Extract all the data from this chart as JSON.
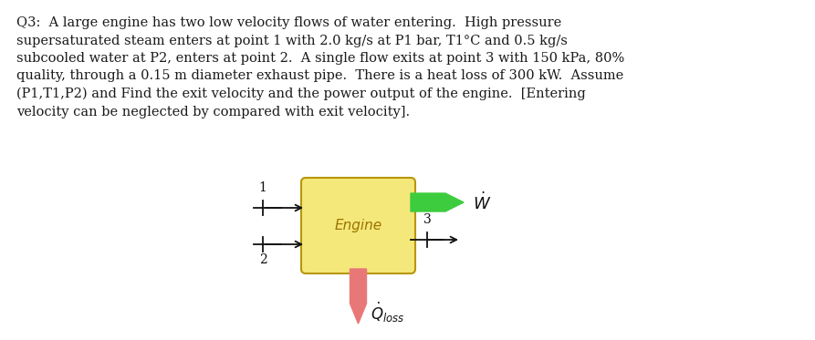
{
  "background_color": "#ffffff",
  "text_lines": [
    "Q3:  A large engine has two low velocity flows of water entering.  High pressure",
    "supersaturated steam enters at point 1 with 2.0 kg/s at P1 bar, T1°C and 0.5 kg/s",
    "subcooled water at P2, enters at point 2.  A single flow exits at point 3 with 150 kPa, 80%",
    "quality, through a 0.15 m diameter exhaust pipe.  There is a heat loss of 300 kW.  Assume",
    "(P1,T1,P2) and Find the exit velocity and the power output of the engine.  [Entering",
    "velocity can be neglected by compared with exit velocity]."
  ],
  "text_fontsize": 10.5,
  "text_color": "#1a1a1a",
  "engine_box_facecolor": "#f5e87a",
  "engine_box_edgecolor": "#b8960a",
  "engine_label": "Engine",
  "engine_label_color": "#9a7200",
  "engine_label_fontsize": 11,
  "green_arrow_color": "#3dcc3d",
  "red_arrow_color": "#e87878",
  "black_color": "#111111",
  "W_dot_label": "$\\dot{W}$",
  "Q_dot_label": "$\\dot{Q}_{loss}$",
  "label_1": "1",
  "label_2": "2",
  "label_3": "3"
}
